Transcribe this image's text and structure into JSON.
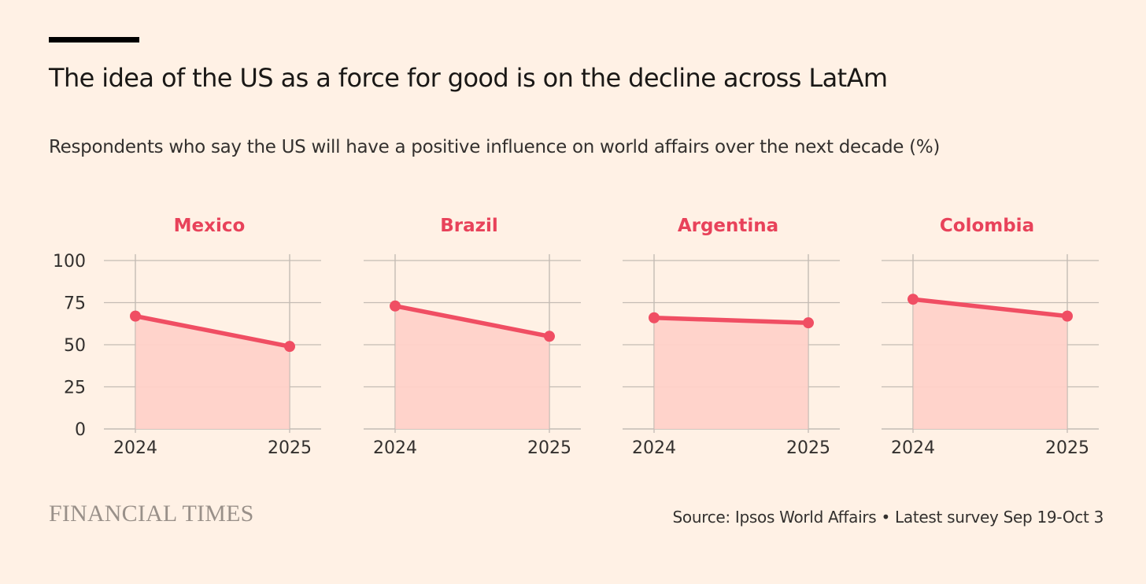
{
  "title": "The idea of the US as a force for good is on the decline across LatAm",
  "subtitle": "Respondents who say the US will have a positive influence on world affairs over the next decade (%)",
  "branding": "FINANCIAL TIMES",
  "source": "Source: Ipsos World Affairs • Latest survey Sep 19-Oct 3",
  "colors": {
    "background": "#FFF1E5",
    "line": "#F04E63",
    "area": "#FFD1C9",
    "panel_title": "#E8425A",
    "grid": "#C4BCB5",
    "text": "#33302E"
  },
  "chart_data": [
    {
      "type": "area",
      "title": "Mexico",
      "x": [
        "2024",
        "2025"
      ],
      "values": [
        67,
        49
      ],
      "ylim": [
        0,
        100
      ],
      "yticks": [
        "100",
        "75",
        "50",
        "25",
        "0"
      ],
      "grid": true
    },
    {
      "type": "area",
      "title": "Brazil",
      "x": [
        "2024",
        "2025"
      ],
      "values": [
        73,
        55
      ],
      "ylim": [
        0,
        100
      ],
      "grid": true
    },
    {
      "type": "area",
      "title": "Argentina",
      "x": [
        "2024",
        "2025"
      ],
      "values": [
        66,
        63
      ],
      "ylim": [
        0,
        100
      ],
      "grid": true
    },
    {
      "type": "area",
      "title": "Colombia",
      "x": [
        "2024",
        "2025"
      ],
      "values": [
        77,
        67
      ],
      "ylim": [
        0,
        100
      ],
      "grid": true
    }
  ]
}
